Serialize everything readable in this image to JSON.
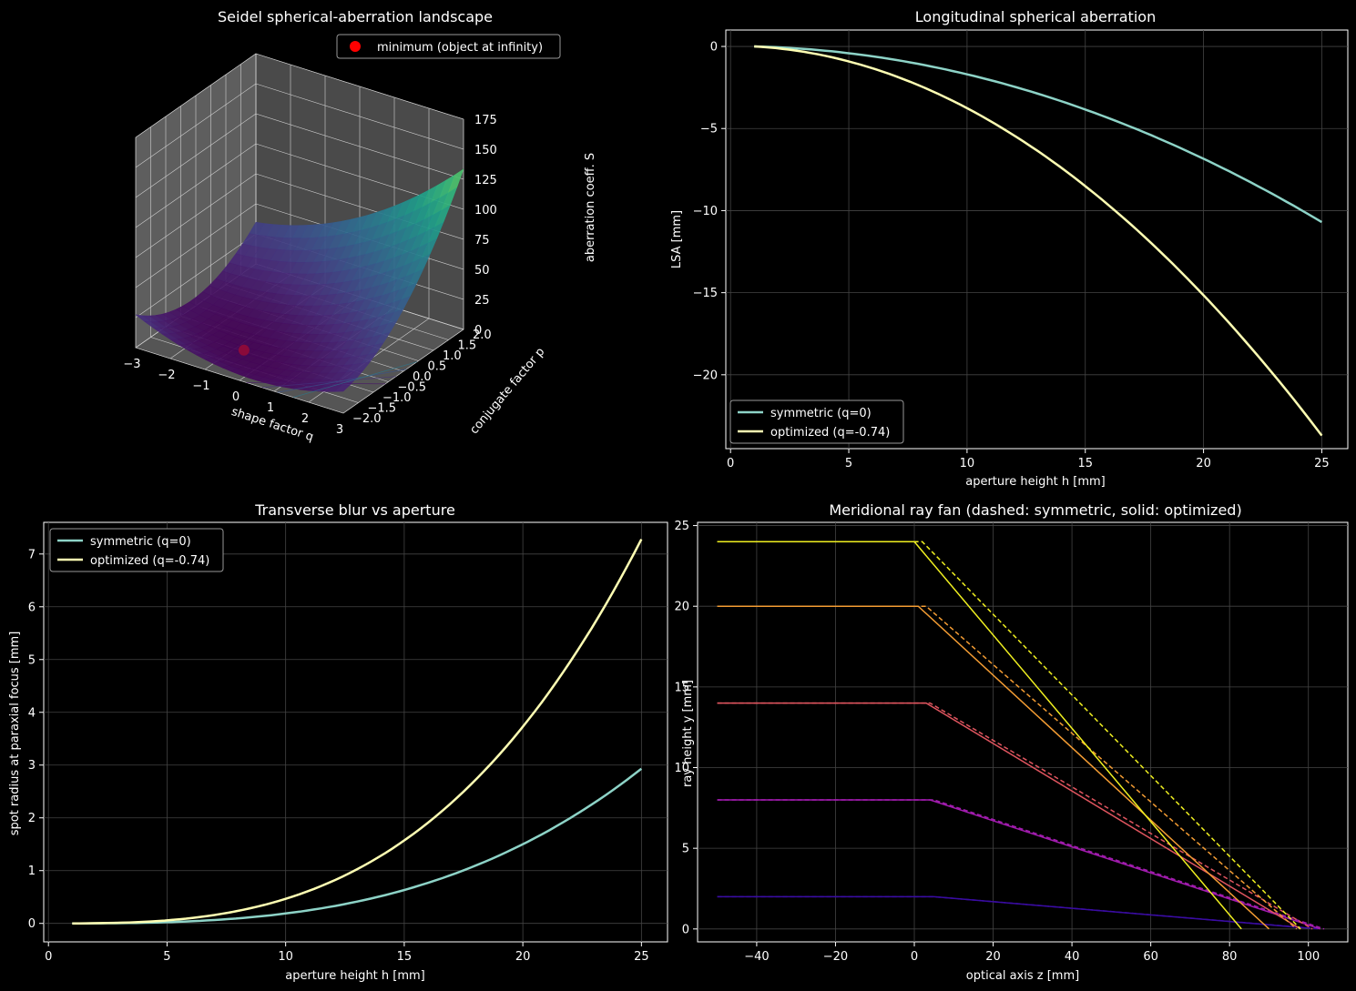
{
  "colors": {
    "background": "#000000",
    "symmetric": "#8dd3c7",
    "optimized": "#ffffb3",
    "grid": "#444444",
    "minimum_marker": "#ff0000"
  },
  "chart_data": [
    {
      "type": "surface3d",
      "title": "Seidel spherical-aberration landscape",
      "xlabel": "shape factor q",
      "ylabel": "conjugate factor p",
      "zlabel": "aberration coeff. S",
      "xlim": [
        -3,
        3
      ],
      "ylim": [
        -2,
        2
      ],
      "zlim": [
        0,
        175
      ],
      "xticks": [
        "−3",
        "−2",
        "−1",
        "0",
        "1",
        "2",
        "3"
      ],
      "yticks": [
        "−2.0",
        "−1.5",
        "−1.0",
        "−0.5",
        "0.0",
        "0.5",
        "1.0",
        "1.5",
        "2.0"
      ],
      "zticks": [
        "0",
        "25",
        "50",
        "75",
        "100",
        "125",
        "150",
        "175"
      ],
      "colormap": "viridis",
      "legend": [
        {
          "name": "minimum (object at infinity)",
          "marker": "circle",
          "color": "#ff0000"
        }
      ],
      "legend_position": "top-right",
      "minimum_point": {
        "q": -0.74,
        "p": -1.0
      },
      "grid": true
    },
    {
      "type": "line",
      "title": "Longitudinal spherical aberration",
      "xlabel": "aperture height h [mm]",
      "ylabel": "LSA [mm]",
      "xlim": [
        1,
        25
      ],
      "ylim": [
        -24.5,
        1
      ],
      "xticks": [
        "0",
        "5",
        "10",
        "15",
        "20",
        "25"
      ],
      "yticks": [
        "0",
        "−5",
        "−10",
        "−15",
        "−20"
      ],
      "grid": true,
      "legend_position": "lower-left",
      "series": [
        {
          "name": "symmetric (q=0)",
          "x": [
            1,
            25
          ],
          "values": [
            0,
            -10.7
          ],
          "shape": "quadratic"
        },
        {
          "name": "optimized (q=-0.74)",
          "x": [
            1,
            25
          ],
          "values": [
            0,
            -23.7
          ],
          "shape": "quadratic"
        }
      ]
    },
    {
      "type": "line",
      "title": "Transverse blur vs aperture",
      "xlabel": "aperture height h [mm]",
      "ylabel": "spot radius at paraxial focus [mm]",
      "xlim": [
        1,
        25
      ],
      "ylim": [
        -0.35,
        7.6
      ],
      "xticks": [
        "0",
        "5",
        "10",
        "15",
        "20",
        "25"
      ],
      "yticks": [
        "0",
        "1",
        "2",
        "3",
        "4",
        "5",
        "6",
        "7"
      ],
      "grid": true,
      "legend_position": "top-left",
      "series": [
        {
          "name": "symmetric (q=0)",
          "x": [
            1,
            25
          ],
          "values": [
            0,
            2.93
          ],
          "shape": "cubic"
        },
        {
          "name": "optimized (q=-0.74)",
          "x": [
            1,
            25
          ],
          "values": [
            0,
            7.28
          ],
          "shape": "cubic"
        }
      ]
    },
    {
      "type": "line",
      "title": "Meridional ray fan (dashed: symmetric, solid: optimized)",
      "xlabel": "optical axis z [mm]",
      "ylabel": "ray height y [mm]",
      "xlim": [
        -55,
        110
      ],
      "ylim": [
        -0.8,
        25.2
      ],
      "xticks": [
        "−40",
        "−20",
        "0",
        "20",
        "40",
        "60",
        "80",
        "100"
      ],
      "yticks": [
        "0",
        "5",
        "10",
        "15",
        "20",
        "25"
      ],
      "grid": true,
      "rays": [
        {
          "y": 2,
          "color": "#3a0ca3",
          "optimized_path": [
            [
              -50,
              2
            ],
            [
              5,
              2
            ],
            [
              100,
              0.05
            ]
          ],
          "symmetric_path": [
            [
              -50,
              2
            ],
            [
              5,
              2
            ],
            [
              103,
              0
            ]
          ]
        },
        {
          "y": 8,
          "color": "#a21caf",
          "optimized_path": [
            [
              -50,
              8
            ],
            [
              4,
              8
            ],
            [
              103,
              0
            ]
          ],
          "symmetric_path": [
            [
              -50,
              8
            ],
            [
              5,
              8
            ],
            [
              104,
              0
            ]
          ]
        },
        {
          "y": 14,
          "color": "#e0555f",
          "optimized_path": [
            [
              -50,
              14
            ],
            [
              3,
              14
            ],
            [
              98,
              0
            ]
          ],
          "symmetric_path": [
            [
              -50,
              14
            ],
            [
              4,
              14
            ],
            [
              101,
              0
            ]
          ]
        },
        {
          "y": 20,
          "color": "#f39c33",
          "optimized_path": [
            [
              -50,
              20
            ],
            [
              1,
              20
            ],
            [
              90,
              0
            ]
          ],
          "symmetric_path": [
            [
              -50,
              20
            ],
            [
              3,
              20
            ],
            [
              97,
              0
            ]
          ]
        },
        {
          "y": 24,
          "color": "#f0f020",
          "optimized_path": [
            [
              -50,
              24
            ],
            [
              0,
              24
            ],
            [
              83,
              0
            ]
          ],
          "symmetric_path": [
            [
              -50,
              24
            ],
            [
              2,
              24
            ],
            [
              98,
              0
            ]
          ]
        }
      ]
    }
  ]
}
